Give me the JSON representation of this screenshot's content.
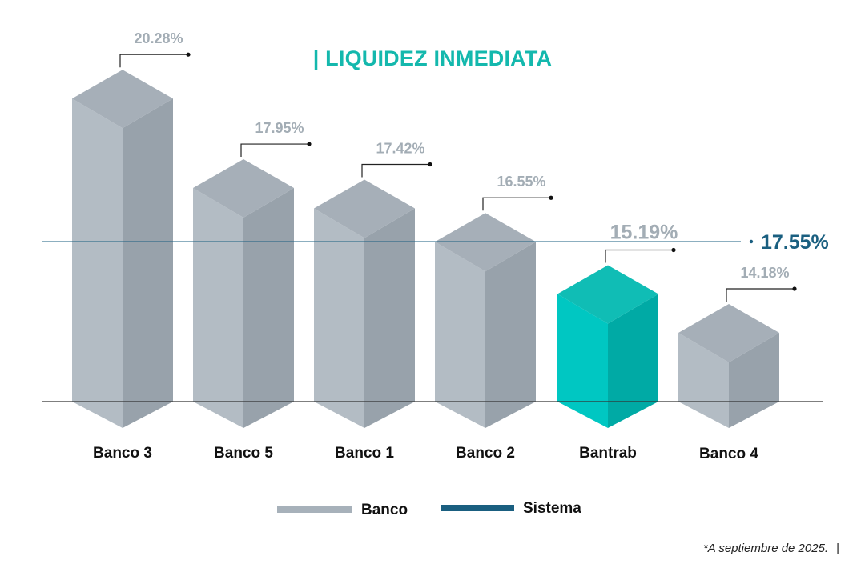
{
  "chart_data": {
    "type": "bar",
    "title": "| LIQUIDEZ INMEDIATA",
    "categories": [
      "Banco 3",
      "Banco 5",
      "Banco 1",
      "Banco 2",
      "Bantrab",
      "Banco 4"
    ],
    "values": [
      20.28,
      17.95,
      17.42,
      16.55,
      15.19,
      14.18
    ],
    "value_labels": [
      "20.28%",
      "17.95%",
      "17.42%",
      "16.55%",
      "15.19%",
      "14.18%"
    ],
    "highlight_category": "Bantrab",
    "reference_line": {
      "name": "Sistema",
      "value": 17.55,
      "label": "17.55%"
    },
    "legend": [
      {
        "name": "Banco",
        "color": "#a7b1ba"
      },
      {
        "name": "Sistema",
        "color": "#1a5f80"
      }
    ],
    "legend_position": "bottom",
    "grid": false
  },
  "colors": {
    "title": "#14b8ad",
    "bar_front": "#b3bcc4",
    "bar_side": "#98a2ab",
    "bar_top": "#a6afb8",
    "highlight_front": "#00c7c2",
    "highlight_side": "#00aaa5",
    "highlight_top": "#10bdb5",
    "system_line": "#1a5f80",
    "value_label": "#a3adb5"
  },
  "footnote": "*A septiembre de 2025.",
  "footnote_bar": "|"
}
